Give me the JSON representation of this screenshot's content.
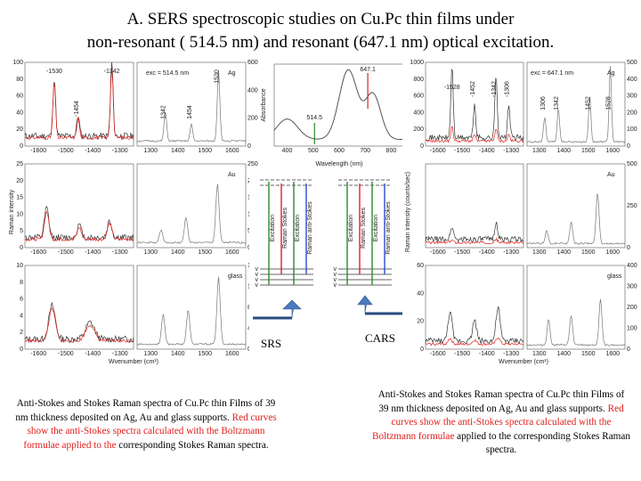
{
  "title": {
    "line1": "A.  SERS  spectroscopic studies on Cu.Pc thin films under",
    "line2": "non-resonant ( 514.5 nm)  and resonant (647.1 nm) optical excitation."
  },
  "left_block": {
    "y_axis_label": "Raman intensity",
    "x_axis_label": "Wvenumber (cm¹)",
    "x_ticks_as": [
      "-1600",
      "-1500",
      "-1400",
      "-1300"
    ],
    "x_ticks_s": [
      "1300",
      "1400",
      "1500",
      "1600"
    ],
    "rows": [
      {
        "support": "Ag",
        "exc": "λ",
        "y_left": [
          "0",
          "20",
          "40",
          "60",
          "80",
          "100"
        ],
        "y_right": [
          "0",
          "200000",
          "400000",
          "600000"
        ],
        "peaks_as": [
          "-1530",
          "-1454",
          "-1342"
        ],
        "peaks_s": [
          "1342",
          "1454",
          "1530"
        ],
        "laser": "exc = 514.5 nm"
      },
      {
        "support": "Au",
        "y_left": [
          "0",
          "5",
          "10",
          "15",
          "20",
          "25"
        ],
        "y_right": [
          "0",
          "500",
          "1000",
          "1500",
          "2000",
          "2500"
        ]
      },
      {
        "support": "glass",
        "y_left": [
          "0",
          "2",
          "4",
          "6",
          "8",
          "10"
        ],
        "y_right": [
          "0",
          "400",
          "800",
          "1200",
          "1600"
        ]
      }
    ]
  },
  "absorbance": {
    "ylabel": "Absorbance",
    "xlabel": "Wavelength (nm)",
    "x_ticks": [
      "400",
      "500",
      "600",
      "700",
      "800"
    ],
    "lines": [
      "647.1",
      "514.5"
    ]
  },
  "energy_diagrams": {
    "srs_labels": [
      "Excitation",
      "Raman Stokes",
      "Excitation",
      "Raman anti-Stokes"
    ],
    "cars_labels": [
      "Excitation",
      "Raman Stokes",
      "Excitation",
      "Raman anti-Stokes"
    ],
    "levels": [
      "v",
      "v",
      "v",
      "v"
    ],
    "srs": "SRS",
    "cars": "CARS"
  },
  "right_block": {
    "y_axis_label": "Raman intensity (counts/sec)",
    "x_axis_label": "Wvenumber (cm¹)",
    "x_ticks_as": [
      "-1600",
      "-1500",
      "-1400",
      "-1300"
    ],
    "x_ticks_s": [
      "1300",
      "1400",
      "1500",
      "1600"
    ],
    "rows": [
      {
        "support": "Ag",
        "laser": "exc = 647.1 nm",
        "y_left": [
          "0",
          "200",
          "400",
          "600",
          "800",
          "1000"
        ],
        "y_right": [
          "0",
          "10000",
          "20000",
          "30000",
          "40000",
          "50000"
        ],
        "peaks_as": [
          "-1528",
          "-1452",
          "-1342",
          "-1306"
        ],
        "peaks_s": [
          "1306",
          "1342",
          "1452",
          "1528"
        ]
      },
      {
        "support": "Au",
        "y_right": [
          "0",
          "25000",
          "50000"
        ]
      },
      {
        "support": "glass",
        "y_left": [
          "0",
          "20",
          "40",
          "60"
        ],
        "y_right": [
          "0",
          "1000",
          "2000",
          "3000",
          "4000"
        ]
      }
    ]
  },
  "captions": {
    "left_black": "Anti-Stokes and Stokes Raman spectra of Cu.Pc thin Films of 39 nm thickness deposited on Ag, Au and glass supports. ",
    "left_red": "Red curves show the anti-Stokes spectra calculated with  the Boltzmann formulae applied to the",
    "left_end": " corresponding Stokes Raman spectra.",
    "right_black": "Anti-Stokes and Stokes Raman spectra of Cu.Pc thin Films of 39 nm thickness deposited on Ag, Au and glass supports. ",
    "right_red": "Red curves show the anti-Stokes spectra calculated with the Boltzmann formulae",
    "right_end": " applied to the corresponding Stokes Raman spectra."
  }
}
